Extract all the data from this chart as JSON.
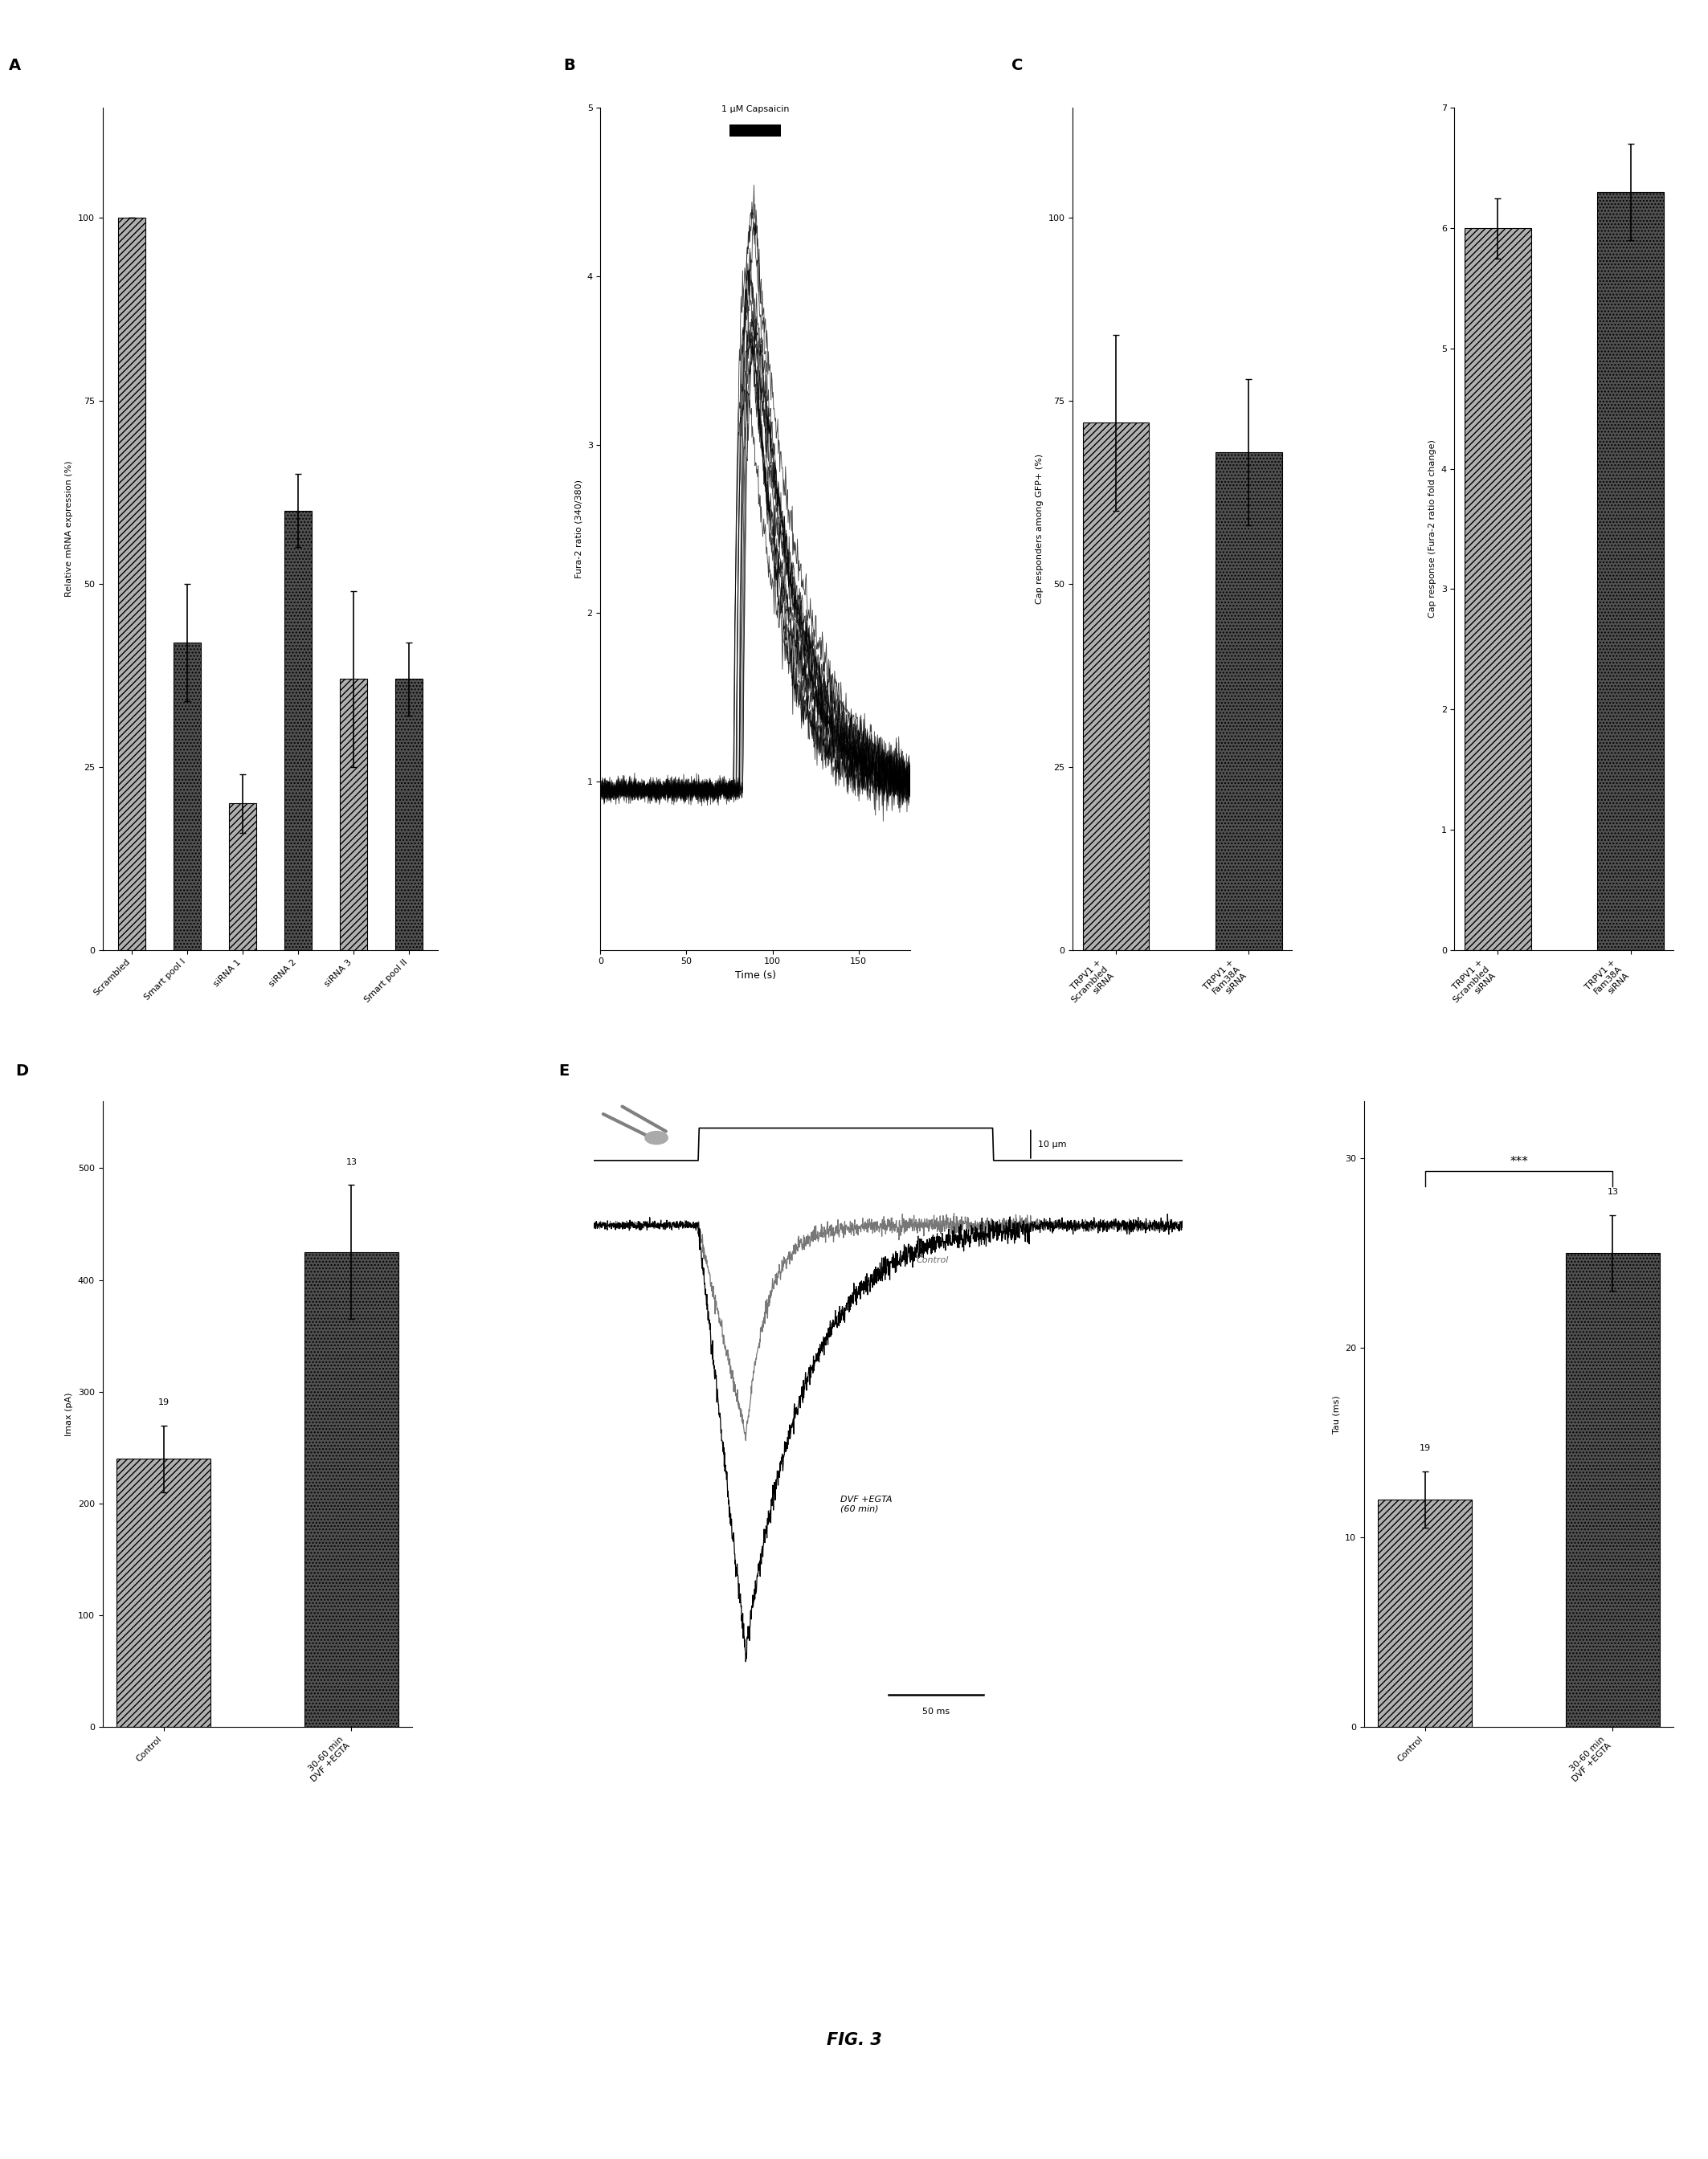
{
  "panel_A": {
    "categories": [
      "Scrambled",
      "Smart pool I",
      "siRNA 1",
      "siRNA 2",
      "siRNA 3",
      "Smart pool II"
    ],
    "values": [
      100,
      42,
      20,
      60,
      37,
      37
    ],
    "errors": [
      0,
      8,
      4,
      5,
      12,
      5
    ],
    "ylabel": "Relative mRNA expression (%)",
    "ylim": [
      0,
      115
    ],
    "yticks": [
      0,
      25,
      50,
      75,
      100
    ],
    "patterns": [
      "/",
      ".",
      "/",
      ".",
      "/",
      "."
    ]
  },
  "panel_B": {
    "annotation": "1 μM Capsaicin",
    "xlabel": "Time (s)",
    "ylabel": "Fura-2 ratio (340/380)",
    "ylim": [
      0,
      5
    ],
    "xlim": [
      0,
      180
    ],
    "yticks": [
      1,
      2,
      3,
      4,
      5
    ],
    "xticks": [
      0,
      50,
      100,
      150
    ]
  },
  "panel_C_left": {
    "categories": [
      "TRPV1 +\nScrambled\nsiRNA",
      "TRPV1 +\nFam38A\nsiRNA"
    ],
    "values": [
      72,
      68
    ],
    "errors": [
      12,
      10
    ],
    "ylabel": "Cap responders among GFP+ (%)",
    "ylim": [
      0,
      115
    ],
    "yticks": [
      0,
      25,
      50,
      75,
      100
    ],
    "patterns": [
      "/",
      "."
    ]
  },
  "panel_C_right": {
    "categories": [
      "TRPV1 +\nScrambled\nsiRNA",
      "TRPV1 +\nFam38A\nsiRNA"
    ],
    "values": [
      6.0,
      6.3
    ],
    "errors": [
      0.25,
      0.4
    ],
    "ylabel": "Cap response (Fura-2 ratio fold change)",
    "ylim": [
      0,
      7
    ],
    "yticks": [
      0,
      1,
      2,
      3,
      4,
      5,
      6,
      7
    ],
    "patterns": [
      "/",
      "."
    ]
  },
  "panel_D": {
    "categories": [
      "Control",
      "30-60 min\nDVF +EGTA"
    ],
    "values": [
      240,
      425
    ],
    "errors": [
      30,
      60
    ],
    "ns": [
      "19",
      "13"
    ],
    "ylabel": "Imax (pA)",
    "ylim": [
      0,
      560
    ],
    "yticks": [
      0,
      100,
      200,
      300,
      400,
      500
    ],
    "patterns": [
      "/",
      "."
    ]
  },
  "panel_E_tau": {
    "categories": [
      "Control",
      "30-60 min\nDVF +EGTA"
    ],
    "values": [
      12,
      25
    ],
    "errors": [
      1.5,
      2.0
    ],
    "ns": [
      "19",
      "13"
    ],
    "ylabel": "Tau (ms)",
    "ylim": [
      0,
      33
    ],
    "yticks": [
      0,
      10,
      20,
      30
    ],
    "significance": "***",
    "patterns": [
      "/",
      "."
    ]
  },
  "figure_label": "FIG. 3",
  "bg_color": "#ffffff"
}
